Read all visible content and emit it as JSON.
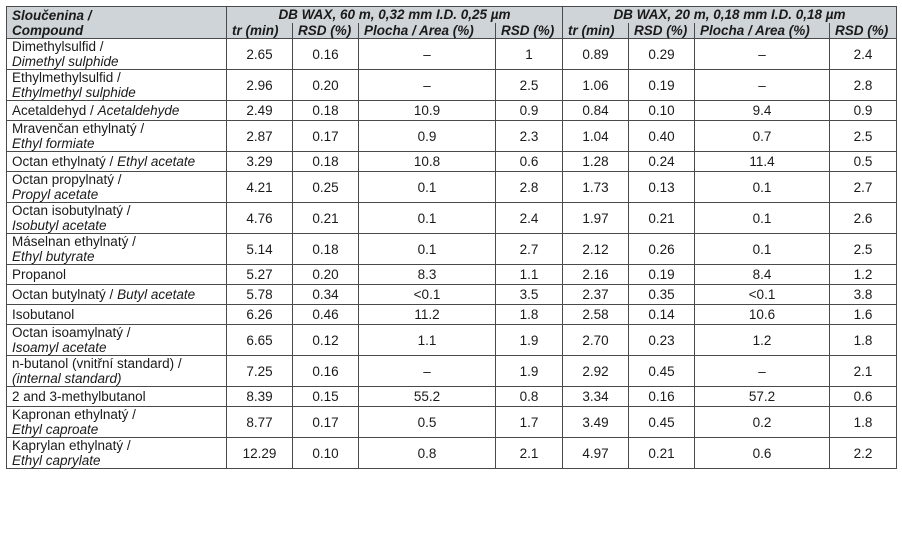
{
  "header": {
    "compound_cs": "Sloučenina /",
    "compound_en": "Compound",
    "group1": "DB WAX, 60 m, 0,32 mm I.D. 0,25 µm",
    "group2": "DB WAX, 20 m, 0,18 mm I.D. 0,18 µm",
    "cols": [
      "tr (min)",
      "RSD (%)",
      "Plocha / Area (%)",
      "RSD (%)",
      "tr (min)",
      "RSD (%)",
      "Plocha / Area (%)",
      "RSD  (%)"
    ]
  },
  "rows": [
    {
      "cs": "Dimethylsulfid  /",
      "en": "Dimethyl sulphide",
      "inline": false,
      "v": [
        "2.65",
        "0.16",
        "–",
        "1",
        "0.89",
        "0.29",
        "–",
        "2.4"
      ]
    },
    {
      "cs": "Ethylmethylsulfid /",
      "en": "Ethylmethyl sulphide",
      "inline": false,
      "v": [
        "2.96",
        "0.20",
        "–",
        "2.5",
        "1.06",
        "0.19",
        "–",
        "2.8"
      ]
    },
    {
      "cs": "Acetaldehyd / ",
      "en": "Acetaldehyde",
      "inline": true,
      "v": [
        "2.49",
        "0.18",
        "10.9",
        "0.9",
        "0.84",
        "0.10",
        "9.4",
        "0.9"
      ]
    },
    {
      "cs": "Mravenčan ethylnatý /",
      "en": "Ethyl formiate",
      "inline": false,
      "v": [
        "2.87",
        "0.17",
        "0.9",
        "2.3",
        "1.04",
        "0.40",
        "0.7",
        "2.5"
      ]
    },
    {
      "cs": "Octan ethylnatý / ",
      "en": "Ethyl acetate",
      "inline": true,
      "v": [
        "3.29",
        "0.18",
        "10.8",
        "0.6",
        "1.28",
        "0.24",
        "11.4",
        "0.5"
      ]
    },
    {
      "cs": "Octan propylnatý /",
      "en": "Propyl acetate",
      "inline": false,
      "v": [
        "4.21",
        "0.25",
        "0.1",
        "2.8",
        "1.73",
        "0.13",
        "0.1",
        "2.7"
      ]
    },
    {
      "cs": "Octan isobutylnatý /",
      "en": "Isobutyl acetate",
      "inline": false,
      "v": [
        "4.76",
        "0.21",
        "0.1",
        "2.4",
        "1.97",
        "0.21",
        "0.1",
        "2.6"
      ]
    },
    {
      "cs": "Máselnan ethylnatý /",
      "en": "Ethyl butyrate",
      "inline": false,
      "v": [
        "5.14",
        "0.18",
        "0.1",
        "2.7",
        "2.12",
        "0.26",
        "0.1",
        "2.5"
      ]
    },
    {
      "cs": "Propanol",
      "en": "",
      "inline": true,
      "v": [
        "5.27",
        "0.20",
        "8.3",
        "1.1",
        "2.16",
        "0.19",
        "8.4",
        "1.2"
      ]
    },
    {
      "cs": "Octan butylnatý / ",
      "en": "Butyl acetate",
      "inline": true,
      "v": [
        "5.78",
        "0.34",
        "<0.1",
        "3.5",
        "2.37",
        "0.35",
        "<0.1",
        "3.8"
      ]
    },
    {
      "cs": "Isobutanol",
      "en": "",
      "inline": true,
      "v": [
        "6.26",
        "0.46",
        "11.2",
        "1.8",
        "2.58",
        "0.14",
        "10.6",
        "1.6"
      ]
    },
    {
      "cs": "Octan isoamylnatý /",
      "en": "Isoamyl acetate",
      "inline": false,
      "v": [
        "6.65",
        "0.12",
        "1.1",
        "1.9",
        "2.70",
        "0.23",
        "1.2",
        "1.8"
      ]
    },
    {
      "cs": "n-butanol (vnitřní standard) /",
      "en": "(internal standard)",
      "inline": false,
      "v": [
        "7.25",
        "0.16",
        "–",
        "1.9",
        "2.92",
        "0.45",
        "–",
        "2.1"
      ]
    },
    {
      "cs": "2 and 3-methylbutanol",
      "en": "",
      "inline": true,
      "v": [
        "8.39",
        "0.15",
        "55.2",
        "0.8",
        "3.34",
        "0.16",
        "57.2",
        "0.6"
      ]
    },
    {
      "cs": "Kapronan ethylnatý /",
      "en": "Ethyl caproate",
      "inline": false,
      "v": [
        "8.77",
        "0.17",
        "0.5",
        "1.7",
        "3.49",
        "0.45",
        "0.2",
        "1.8"
      ]
    },
    {
      "cs": "Kaprylan ethylnatý /",
      "en": "Ethyl caprylate",
      "inline": false,
      "v": [
        "12.29",
        "0.10",
        "0.8",
        "2.1",
        "4.97",
        "0.21",
        "0.6",
        "2.2"
      ]
    }
  ]
}
